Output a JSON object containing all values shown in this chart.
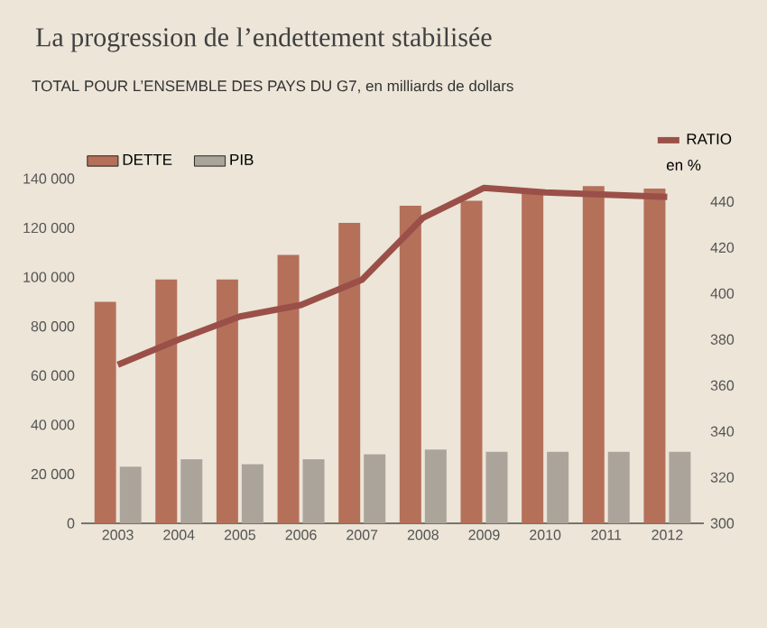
{
  "chart_data": {
    "type": "bar",
    "title": "La progression de l’endettement stabilisée",
    "subtitle": "TOTAL POUR L’ENSEMBLE DES PAYS DU G7, en milliards de dollars",
    "categories": [
      "2003",
      "2004",
      "2005",
      "2006",
      "2007",
      "2008",
      "2009",
      "2010",
      "2011",
      "2012"
    ],
    "series": [
      {
        "name": "DETTE",
        "color": "#b5705a",
        "values": [
          90000,
          99000,
          99000,
          109000,
          122000,
          129000,
          131000,
          134000,
          137000,
          136000
        ]
      },
      {
        "name": "PIB",
        "color": "#aaa49b",
        "values": [
          23000,
          26000,
          24000,
          26000,
          28000,
          30000,
          29000,
          29000,
          29000,
          29000
        ]
      },
      {
        "name": "RATIO",
        "type": "line",
        "axis": "y2",
        "color": "#9a5048",
        "values": [
          369,
          380,
          390,
          395,
          406,
          433,
          446,
          444,
          443,
          442
        ]
      }
    ],
    "y2label": "en %",
    "ylim": [
      0,
      140000
    ],
    "yticks": [
      0,
      {
        "value": 20000,
        "label": "20 000"
      },
      {
        "value": 40000,
        "label": "40 000"
      },
      {
        "value": 60000,
        "label": "60 000"
      },
      {
        "value": 80000,
        "label": "80 000"
      },
      {
        "value": 100000,
        "label": "100 000"
      },
      {
        "value": 120000,
        "label": "120 000"
      },
      {
        "value": 140000,
        "label": "140 000"
      }
    ],
    "y2lim": [
      300,
      450
    ],
    "y2ticks": [
      300,
      320,
      340,
      360,
      380,
      400,
      420,
      440
    ],
    "legend": "top",
    "grid": false,
    "marker": "none"
  }
}
